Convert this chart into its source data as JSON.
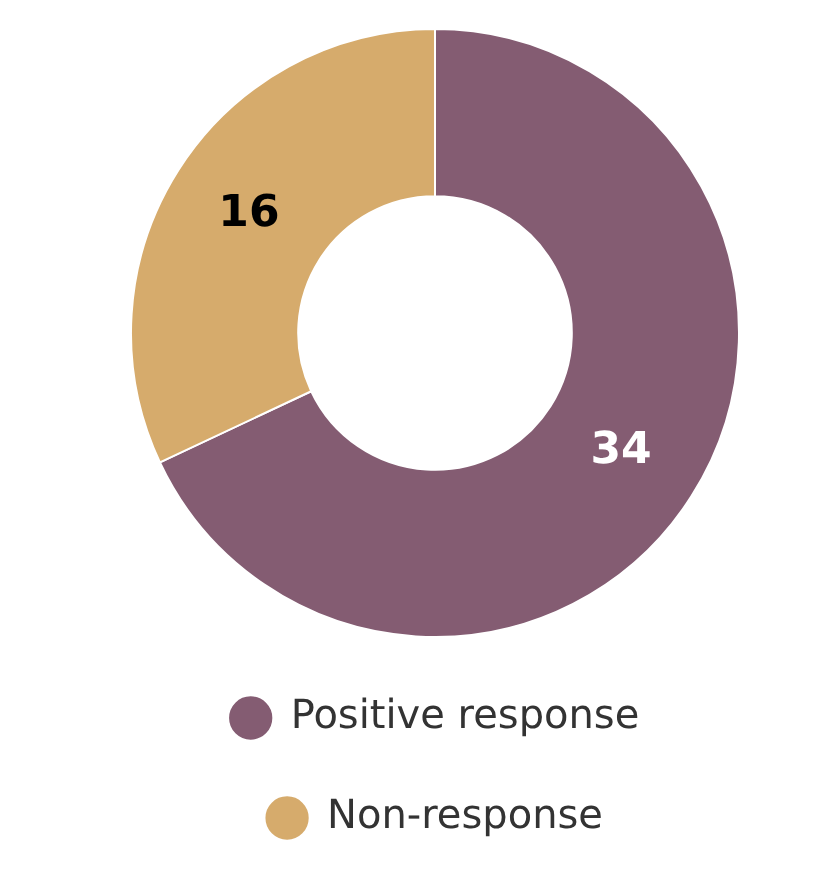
{
  "chart_data": {
    "type": "donut",
    "categories": [
      "Positive response",
      "Non-response"
    ],
    "values": [
      34,
      16
    ],
    "colors": [
      "#845c72",
      "#d6ab6c"
    ],
    "data_labels": true,
    "legend": "bottom"
  }
}
